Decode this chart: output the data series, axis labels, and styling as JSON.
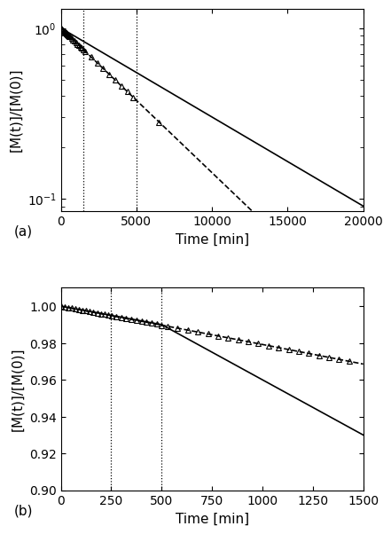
{
  "panel_a": {
    "xmin": 0,
    "xmax": 20000,
    "ymin": 0.085,
    "ymax": 1.3,
    "dotted_lines": [
      1500,
      5000
    ],
    "rate_solid": 0.00012,
    "rate_dashed": 0.000195,
    "xlabel": "Time [min]",
    "ylabel": "[M(t)]/[M(0)]",
    "label": "(a)",
    "xticks": [
      0,
      5000,
      10000,
      15000,
      20000
    ]
  },
  "panel_b": {
    "xmin": 0,
    "xmax": 1500,
    "ymin": 0.9,
    "ymax": 1.01,
    "dotted_lines": [
      250,
      500
    ],
    "xlabel": "Time [min]",
    "ylabel": "[M(t)]/[M(0)]",
    "label": "(b)",
    "yticks": [
      0.9,
      0.92,
      0.94,
      0.96,
      0.98,
      1.0
    ],
    "xticks": [
      0,
      250,
      500,
      750,
      1000,
      1250,
      1500
    ],
    "rate_solid": 2e-05,
    "rate_dashed_slope": 5.75e-05
  }
}
